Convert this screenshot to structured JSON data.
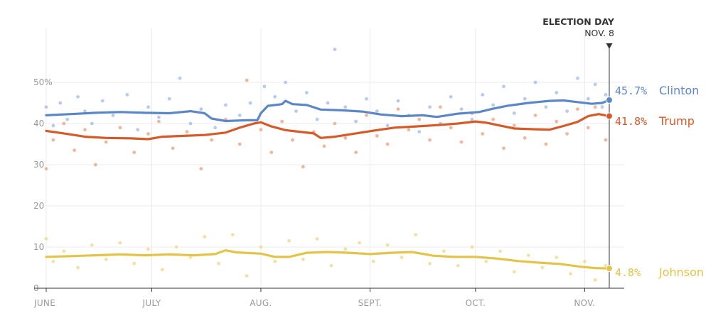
{
  "chart_data": {
    "type": "line",
    "title": "",
    "xlabel": "",
    "ylabel": "",
    "x_start": "2016-06-01",
    "x_end": "2016-11-08",
    "ylim": [
      0,
      60
    ],
    "y_ticks": [
      {
        "value": 0,
        "label": "0"
      },
      {
        "value": 10,
        "label": "10"
      },
      {
        "value": 20,
        "label": "20"
      },
      {
        "value": 30,
        "label": "30"
      },
      {
        "value": 40,
        "label": "40"
      },
      {
        "value": 50,
        "label": "50%"
      }
    ],
    "x_ticks": [
      {
        "date": "2016-06-01",
        "label": "JUNE"
      },
      {
        "date": "2016-07-01",
        "label": "JULY"
      },
      {
        "date": "2016-08-01",
        "label": "AUG."
      },
      {
        "date": "2016-09-01",
        "label": "SEPT."
      },
      {
        "date": "2016-10-01",
        "label": "OCT."
      },
      {
        "date": "2016-11-01",
        "label": "NOV."
      }
    ],
    "grid": true,
    "annotation": {
      "title": "ELECTION DAY",
      "date_label": "NOV. 8",
      "date": "2016-11-08"
    },
    "series": [
      {
        "name": "Clinton",
        "color": "#5b87c9",
        "dot_color": "#a9c2ea",
        "final_value": 45.7,
        "final_label": "45.7%",
        "points": [
          [
            "2016-06-01",
            42.0
          ],
          [
            "2016-06-08",
            42.3
          ],
          [
            "2016-06-15",
            42.6
          ],
          [
            "2016-06-22",
            42.8
          ],
          [
            "2016-06-29",
            42.6
          ],
          [
            "2016-07-06",
            42.5
          ],
          [
            "2016-07-12",
            43.0
          ],
          [
            "2016-07-16",
            42.5
          ],
          [
            "2016-07-18",
            41.2
          ],
          [
            "2016-07-22",
            40.6
          ],
          [
            "2016-07-28",
            40.8
          ],
          [
            "2016-07-31",
            40.8
          ],
          [
            "2016-08-01",
            42.5
          ],
          [
            "2016-08-03",
            44.3
          ],
          [
            "2016-08-07",
            44.7
          ],
          [
            "2016-08-08",
            45.5
          ],
          [
            "2016-08-10",
            44.7
          ],
          [
            "2016-08-14",
            44.5
          ],
          [
            "2016-08-18",
            43.4
          ],
          [
            "2016-08-24",
            43.2
          ],
          [
            "2016-08-30",
            42.9
          ],
          [
            "2016-09-04",
            42.2
          ],
          [
            "2016-09-10",
            41.8
          ],
          [
            "2016-09-16",
            42.0
          ],
          [
            "2016-09-20",
            41.6
          ],
          [
            "2016-09-26",
            42.4
          ],
          [
            "2016-10-02",
            42.8
          ],
          [
            "2016-10-06",
            43.6
          ],
          [
            "2016-10-10",
            44.3
          ],
          [
            "2016-10-16",
            45.0
          ],
          [
            "2016-10-22",
            45.5
          ],
          [
            "2016-10-26",
            45.6
          ],
          [
            "2016-10-30",
            45.2
          ],
          [
            "2016-11-03",
            44.8
          ],
          [
            "2016-11-06",
            45.0
          ],
          [
            "2016-11-08",
            45.7
          ]
        ],
        "polls": [
          [
            "2016-06-01",
            44.0
          ],
          [
            "2016-06-03",
            39.5
          ],
          [
            "2016-06-05",
            45.0
          ],
          [
            "2016-06-07",
            41.0
          ],
          [
            "2016-06-10",
            46.5
          ],
          [
            "2016-06-12",
            43.0
          ],
          [
            "2016-06-14",
            40.0
          ],
          [
            "2016-06-17",
            45.5
          ],
          [
            "2016-06-20",
            42.0
          ],
          [
            "2016-06-24",
            47.0
          ],
          [
            "2016-06-27",
            38.5
          ],
          [
            "2016-06-30",
            44.0
          ],
          [
            "2016-07-03",
            41.5
          ],
          [
            "2016-07-06",
            46.0
          ],
          [
            "2016-07-09",
            51.0
          ],
          [
            "2016-07-12",
            40.0
          ],
          [
            "2016-07-15",
            43.5
          ],
          [
            "2016-07-19",
            39.0
          ],
          [
            "2016-07-22",
            44.5
          ],
          [
            "2016-07-26",
            42.0
          ],
          [
            "2016-07-29",
            45.0
          ],
          [
            "2016-08-02",
            49.0
          ],
          [
            "2016-08-05",
            46.5
          ],
          [
            "2016-08-08",
            50.0
          ],
          [
            "2016-08-11",
            43.0
          ],
          [
            "2016-08-14",
            47.5
          ],
          [
            "2016-08-17",
            41.0
          ],
          [
            "2016-08-20",
            45.0
          ],
          [
            "2016-08-22",
            58.0
          ],
          [
            "2016-08-25",
            44.0
          ],
          [
            "2016-08-28",
            40.5
          ],
          [
            "2016-08-31",
            46.0
          ],
          [
            "2016-09-03",
            43.0
          ],
          [
            "2016-09-06",
            39.5
          ],
          [
            "2016-09-09",
            45.5
          ],
          [
            "2016-09-12",
            42.0
          ],
          [
            "2016-09-15",
            38.0
          ],
          [
            "2016-09-18",
            44.0
          ],
          [
            "2016-09-21",
            40.0
          ],
          [
            "2016-09-24",
            46.5
          ],
          [
            "2016-09-27",
            43.5
          ],
          [
            "2016-09-30",
            41.0
          ],
          [
            "2016-10-03",
            47.0
          ],
          [
            "2016-10-06",
            44.5
          ],
          [
            "2016-10-09",
            49.0
          ],
          [
            "2016-10-12",
            42.5
          ],
          [
            "2016-10-15",
            46.0
          ],
          [
            "2016-10-18",
            50.0
          ],
          [
            "2016-10-21",
            44.0
          ],
          [
            "2016-10-24",
            47.5
          ],
          [
            "2016-10-27",
            43.0
          ],
          [
            "2016-10-30",
            51.0
          ],
          [
            "2016-11-02",
            46.0
          ],
          [
            "2016-11-04",
            49.5
          ],
          [
            "2016-11-06",
            44.0
          ],
          [
            "2016-11-07",
            47.0
          ]
        ]
      },
      {
        "name": "Trump",
        "color": "#d65a28",
        "dot_color": "#eeaa8c",
        "final_value": 41.8,
        "final_label": "41.8%",
        "points": [
          [
            "2016-06-01",
            38.2
          ],
          [
            "2016-06-06",
            37.6
          ],
          [
            "2016-06-12",
            36.8
          ],
          [
            "2016-06-18",
            36.5
          ],
          [
            "2016-06-25",
            36.4
          ],
          [
            "2016-06-30",
            36.2
          ],
          [
            "2016-07-04",
            36.8
          ],
          [
            "2016-07-10",
            37.0
          ],
          [
            "2016-07-16",
            37.2
          ],
          [
            "2016-07-22",
            37.8
          ],
          [
            "2016-07-26",
            39.0
          ],
          [
            "2016-07-30",
            40.0
          ],
          [
            "2016-08-01",
            40.3
          ],
          [
            "2016-08-04",
            39.3
          ],
          [
            "2016-08-08",
            38.4
          ],
          [
            "2016-08-12",
            38.0
          ],
          [
            "2016-08-16",
            37.6
          ],
          [
            "2016-08-18",
            36.5
          ],
          [
            "2016-08-22",
            36.8
          ],
          [
            "2016-08-28",
            37.6
          ],
          [
            "2016-09-03",
            38.4
          ],
          [
            "2016-09-08",
            39.0
          ],
          [
            "2016-09-14",
            39.3
          ],
          [
            "2016-09-20",
            39.6
          ],
          [
            "2016-09-26",
            40.0
          ],
          [
            "2016-10-01",
            40.5
          ],
          [
            "2016-10-04",
            40.2
          ],
          [
            "2016-10-08",
            39.5
          ],
          [
            "2016-10-12",
            38.8
          ],
          [
            "2016-10-18",
            38.6
          ],
          [
            "2016-10-22",
            38.5
          ],
          [
            "2016-10-26",
            39.4
          ],
          [
            "2016-10-30",
            40.4
          ],
          [
            "2016-11-02",
            41.8
          ],
          [
            "2016-11-05",
            42.3
          ],
          [
            "2016-11-08",
            41.8
          ]
        ],
        "polls": [
          [
            "2016-06-01",
            29.0
          ],
          [
            "2016-06-03",
            36.0
          ],
          [
            "2016-06-06",
            40.0
          ],
          [
            "2016-06-09",
            33.5
          ],
          [
            "2016-06-12",
            38.5
          ],
          [
            "2016-06-15",
            30.0
          ],
          [
            "2016-06-18",
            35.5
          ],
          [
            "2016-06-22",
            39.0
          ],
          [
            "2016-06-26",
            33.0
          ],
          [
            "2016-06-30",
            37.5
          ],
          [
            "2016-07-03",
            40.5
          ],
          [
            "2016-07-07",
            34.0
          ],
          [
            "2016-07-11",
            38.0
          ],
          [
            "2016-07-15",
            29.0
          ],
          [
            "2016-07-18",
            36.0
          ],
          [
            "2016-07-22",
            41.0
          ],
          [
            "2016-07-26",
            35.0
          ],
          [
            "2016-07-28",
            50.5
          ],
          [
            "2016-08-01",
            38.5
          ],
          [
            "2016-08-04",
            33.0
          ],
          [
            "2016-08-07",
            40.5
          ],
          [
            "2016-08-10",
            36.0
          ],
          [
            "2016-08-13",
            29.5
          ],
          [
            "2016-08-16",
            38.0
          ],
          [
            "2016-08-19",
            34.5
          ],
          [
            "2016-08-22",
            40.0
          ],
          [
            "2016-08-25",
            36.5
          ],
          [
            "2016-08-28",
            33.0
          ],
          [
            "2016-08-31",
            42.0
          ],
          [
            "2016-09-03",
            37.0
          ],
          [
            "2016-09-06",
            35.0
          ],
          [
            "2016-09-09",
            43.5
          ],
          [
            "2016-09-12",
            38.5
          ],
          [
            "2016-09-15",
            41.0
          ],
          [
            "2016-09-18",
            36.0
          ],
          [
            "2016-09-21",
            44.0
          ],
          [
            "2016-09-24",
            39.0
          ],
          [
            "2016-09-27",
            35.5
          ],
          [
            "2016-09-30",
            42.5
          ],
          [
            "2016-10-03",
            37.5
          ],
          [
            "2016-10-06",
            41.0
          ],
          [
            "2016-10-09",
            34.0
          ],
          [
            "2016-10-12",
            39.5
          ],
          [
            "2016-10-15",
            36.5
          ],
          [
            "2016-10-18",
            42.0
          ],
          [
            "2016-10-21",
            35.0
          ],
          [
            "2016-10-24",
            40.5
          ],
          [
            "2016-10-27",
            37.5
          ],
          [
            "2016-10-30",
            43.5
          ],
          [
            "2016-11-02",
            39.0
          ],
          [
            "2016-11-04",
            44.0
          ],
          [
            "2016-11-07",
            36.0
          ]
        ]
      },
      {
        "name": "Johnson",
        "color": "#e3c348",
        "dot_color": "#f0dc94",
        "final_value": 4.8,
        "final_label": "4.8%",
        "points": [
          [
            "2016-06-01",
            7.6
          ],
          [
            "2016-06-08",
            7.8
          ],
          [
            "2016-06-15",
            8.0
          ],
          [
            "2016-06-22",
            8.2
          ],
          [
            "2016-06-29",
            8.0
          ],
          [
            "2016-07-06",
            8.2
          ],
          [
            "2016-07-13",
            8.0
          ],
          [
            "2016-07-19",
            8.3
          ],
          [
            "2016-07-22",
            9.2
          ],
          [
            "2016-07-25",
            8.7
          ],
          [
            "2016-08-01",
            8.4
          ],
          [
            "2016-08-05",
            7.6
          ],
          [
            "2016-08-09",
            7.6
          ],
          [
            "2016-08-14",
            8.6
          ],
          [
            "2016-08-20",
            8.8
          ],
          [
            "2016-08-26",
            8.6
          ],
          [
            "2016-09-01",
            8.3
          ],
          [
            "2016-09-07",
            8.6
          ],
          [
            "2016-09-13",
            8.8
          ],
          [
            "2016-09-19",
            7.9
          ],
          [
            "2016-09-25",
            7.6
          ],
          [
            "2016-10-01",
            7.6
          ],
          [
            "2016-10-07",
            7.2
          ],
          [
            "2016-10-13",
            6.6
          ],
          [
            "2016-10-19",
            6.2
          ],
          [
            "2016-10-25",
            5.9
          ],
          [
            "2016-10-31",
            5.2
          ],
          [
            "2016-11-04",
            4.9
          ],
          [
            "2016-11-08",
            4.8
          ]
        ],
        "polls": [
          [
            "2016-06-01",
            12.0
          ],
          [
            "2016-06-03",
            6.5
          ],
          [
            "2016-06-06",
            9.0
          ],
          [
            "2016-06-10",
            5.0
          ],
          [
            "2016-06-14",
            10.5
          ],
          [
            "2016-06-18",
            7.0
          ],
          [
            "2016-06-22",
            11.0
          ],
          [
            "2016-06-26",
            6.0
          ],
          [
            "2016-06-30",
            9.5
          ],
          [
            "2016-07-04",
            4.5
          ],
          [
            "2016-07-08",
            10.0
          ],
          [
            "2016-07-12",
            7.5
          ],
          [
            "2016-07-16",
            12.5
          ],
          [
            "2016-07-20",
            6.0
          ],
          [
            "2016-07-24",
            13.0
          ],
          [
            "2016-07-28",
            3.0
          ],
          [
            "2016-08-01",
            10.0
          ],
          [
            "2016-08-05",
            6.5
          ],
          [
            "2016-08-09",
            11.5
          ],
          [
            "2016-08-13",
            7.0
          ],
          [
            "2016-08-17",
            12.0
          ],
          [
            "2016-08-21",
            5.5
          ],
          [
            "2016-08-25",
            9.5
          ],
          [
            "2016-08-29",
            11.0
          ],
          [
            "2016-09-02",
            6.5
          ],
          [
            "2016-09-06",
            10.5
          ],
          [
            "2016-09-10",
            7.5
          ],
          [
            "2016-09-14",
            13.0
          ],
          [
            "2016-09-18",
            6.0
          ],
          [
            "2016-09-22",
            9.0
          ],
          [
            "2016-09-26",
            5.5
          ],
          [
            "2016-09-30",
            10.0
          ],
          [
            "2016-10-04",
            6.5
          ],
          [
            "2016-10-08",
            9.0
          ],
          [
            "2016-10-12",
            4.0
          ],
          [
            "2016-10-16",
            8.0
          ],
          [
            "2016-10-20",
            5.0
          ],
          [
            "2016-10-24",
            7.5
          ],
          [
            "2016-10-28",
            3.5
          ],
          [
            "2016-11-01",
            6.5
          ],
          [
            "2016-11-04",
            2.0
          ],
          [
            "2016-11-07",
            5.5
          ]
        ]
      }
    ]
  }
}
